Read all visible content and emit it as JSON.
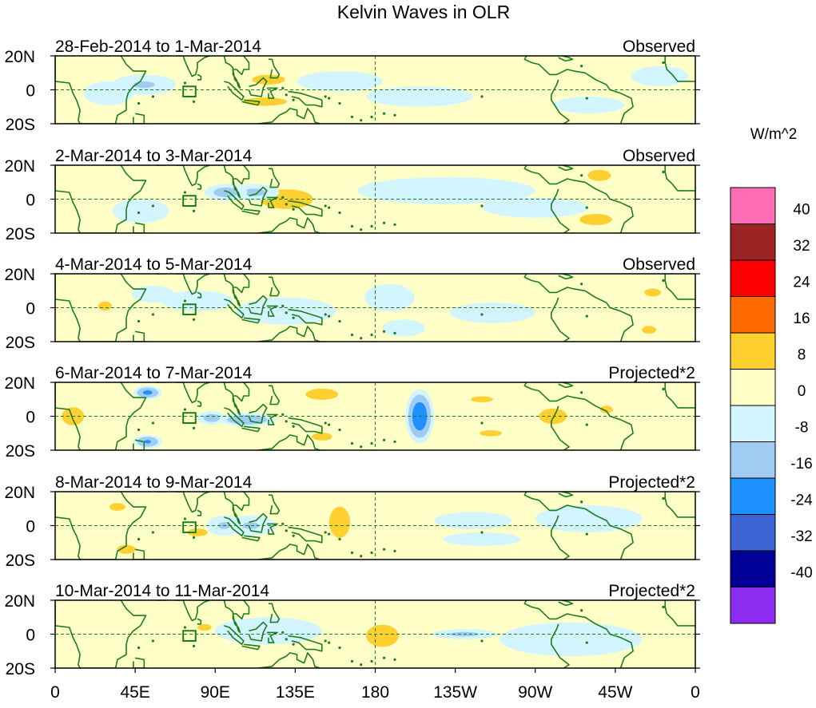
{
  "title": "Kelvin Waves in OLR",
  "panels": [
    {
      "date_range": "28-Feb-2014 to 1-Mar-2014",
      "type_label": "Observed"
    },
    {
      "date_range": "2-Mar-2014 to 3-Mar-2014",
      "type_label": "Observed"
    },
    {
      "date_range": "4-Mar-2014 to 5-Mar-2014",
      "type_label": "Observed"
    },
    {
      "date_range": "6-Mar-2014 to 7-Mar-2014",
      "type_label": "Projected*2"
    },
    {
      "date_range": "8-Mar-2014 to 9-Mar-2014",
      "type_label": "Projected*2"
    },
    {
      "date_range": "10-Mar-2014 to 11-Mar-2014",
      "type_label": "Projected*2"
    }
  ],
  "lat_labels": [
    "20N",
    "0",
    "20S"
  ],
  "lon_labels": [
    "0",
    "45E",
    "90E",
    "135E",
    "180",
    "135W",
    "90W",
    "45W",
    "0"
  ],
  "colorbar": {
    "unit_label": "W/m^2",
    "tick_labels": [
      "40",
      "32",
      "24",
      "16",
      "8",
      "0",
      "-8",
      "-16",
      "-24",
      "-32",
      "-40"
    ],
    "colors": [
      "#ff6eb4",
      "#9b2323",
      "#ff0000",
      "#ff6a00",
      "#ffd030",
      "#ffffc8",
      "#d2f5ff",
      "#a0ccf4",
      "#1e90ff",
      "#3c64d2",
      "#000096",
      "#8c2cf0"
    ]
  },
  "colors": {
    "coast": "#1c7d1c",
    "zero_line": "#1c7d1c"
  },
  "chart_data": {
    "type": "heatmap",
    "title": "Kelvin Waves in OLR",
    "units": "W/m^2",
    "x_range": [
      0,
      360
    ],
    "y_range": [
      -20,
      20
    ],
    "levels": [
      -40,
      -32,
      -24,
      -16,
      -8,
      0,
      8,
      16,
      24,
      32,
      40
    ],
    "panels": [
      {
        "blobs": [
          [
            120,
            6,
            16,
            5,
            12
          ],
          [
            118,
            -7,
            20,
            4,
            13
          ],
          [
            50,
            3,
            18,
            6,
            -9
          ],
          [
            30,
            -2,
            14,
            7,
            -8
          ],
          [
            205,
            -4,
            30,
            6,
            -6
          ],
          [
            300,
            -9,
            20,
            5,
            -7
          ],
          [
            340,
            8,
            16,
            6,
            -7
          ],
          [
            250,
            6,
            28,
            5,
            6
          ],
          [
            80,
            -12,
            24,
            6,
            6
          ],
          [
            160,
            5,
            24,
            6,
            -7
          ]
        ]
      },
      {
        "blobs": [
          [
            130,
            0,
            26,
            10,
            12
          ],
          [
            112,
            4,
            14,
            5,
            -10
          ],
          [
            96,
            4,
            12,
            5,
            -12
          ],
          [
            48,
            -7,
            16,
            7,
            -8
          ],
          [
            304,
            -12,
            14,
            5,
            14
          ],
          [
            306,
            14,
            10,
            5,
            14
          ],
          [
            20,
            0,
            10,
            5,
            5
          ],
          [
            220,
            5,
            50,
            8,
            -5
          ],
          [
            270,
            -5,
            30,
            6,
            -7
          ]
        ]
      },
      {
        "blobs": [
          [
            28,
            1,
            6,
            4,
            14
          ],
          [
            130,
            -2,
            28,
            8,
            -8
          ],
          [
            188,
            6,
            14,
            8,
            -8
          ],
          [
            196,
            -12,
            12,
            5,
            -7
          ],
          [
            336,
            9,
            8,
            4,
            12
          ],
          [
            334,
            -13,
            7,
            4,
            12
          ],
          [
            80,
            4,
            20,
            6,
            -6
          ],
          [
            246,
            -3,
            24,
            6,
            -8
          ],
          [
            55,
            8,
            12,
            5,
            -7
          ]
        ]
      },
      {
        "blobs": [
          [
            205,
            0,
            8,
            16,
            -22
          ],
          [
            150,
            13,
            14,
            5,
            14
          ],
          [
            150,
            -12,
            10,
            4,
            12
          ],
          [
            52,
            14,
            8,
            4,
            -18
          ],
          [
            52,
            -15,
            8,
            4,
            -17
          ],
          [
            280,
            0,
            12,
            7,
            14
          ],
          [
            40,
            -2,
            24,
            10,
            8
          ],
          [
            10,
            0,
            14,
            12,
            10
          ],
          [
            310,
            4,
            8,
            5,
            10
          ],
          [
            240,
            10,
            14,
            4,
            10
          ],
          [
            245,
            -10,
            14,
            4,
            10
          ],
          [
            108,
            -2,
            16,
            4,
            -16
          ],
          [
            88,
            -1,
            8,
            4,
            -12
          ]
        ]
      },
      {
        "blobs": [
          [
            160,
            2,
            9,
            14,
            14
          ],
          [
            110,
            0,
            14,
            6,
            -9
          ],
          [
            95,
            0,
            10,
            6,
            -9
          ],
          [
            80,
            -4,
            10,
            4,
            12
          ],
          [
            235,
            3,
            22,
            5,
            -8
          ],
          [
            240,
            -8,
            22,
            4,
            -8
          ],
          [
            40,
            -14,
            8,
            4,
            14
          ],
          [
            35,
            11,
            10,
            5,
            10
          ],
          [
            300,
            4,
            30,
            8,
            -5
          ],
          [
            352,
            8,
            10,
            5,
            8
          ]
        ]
      },
      {
        "blobs": [
          [
            184,
            -1,
            14,
            10,
            14
          ],
          [
            84,
            4,
            6,
            3,
            14
          ],
          [
            230,
            0,
            18,
            3,
            -10
          ],
          [
            120,
            2,
            30,
            8,
            -5
          ],
          [
            290,
            -3,
            40,
            10,
            -5
          ],
          [
            20,
            0,
            20,
            8,
            4
          ],
          [
            168,
            -10,
            14,
            3,
            6
          ]
        ]
      }
    ]
  }
}
